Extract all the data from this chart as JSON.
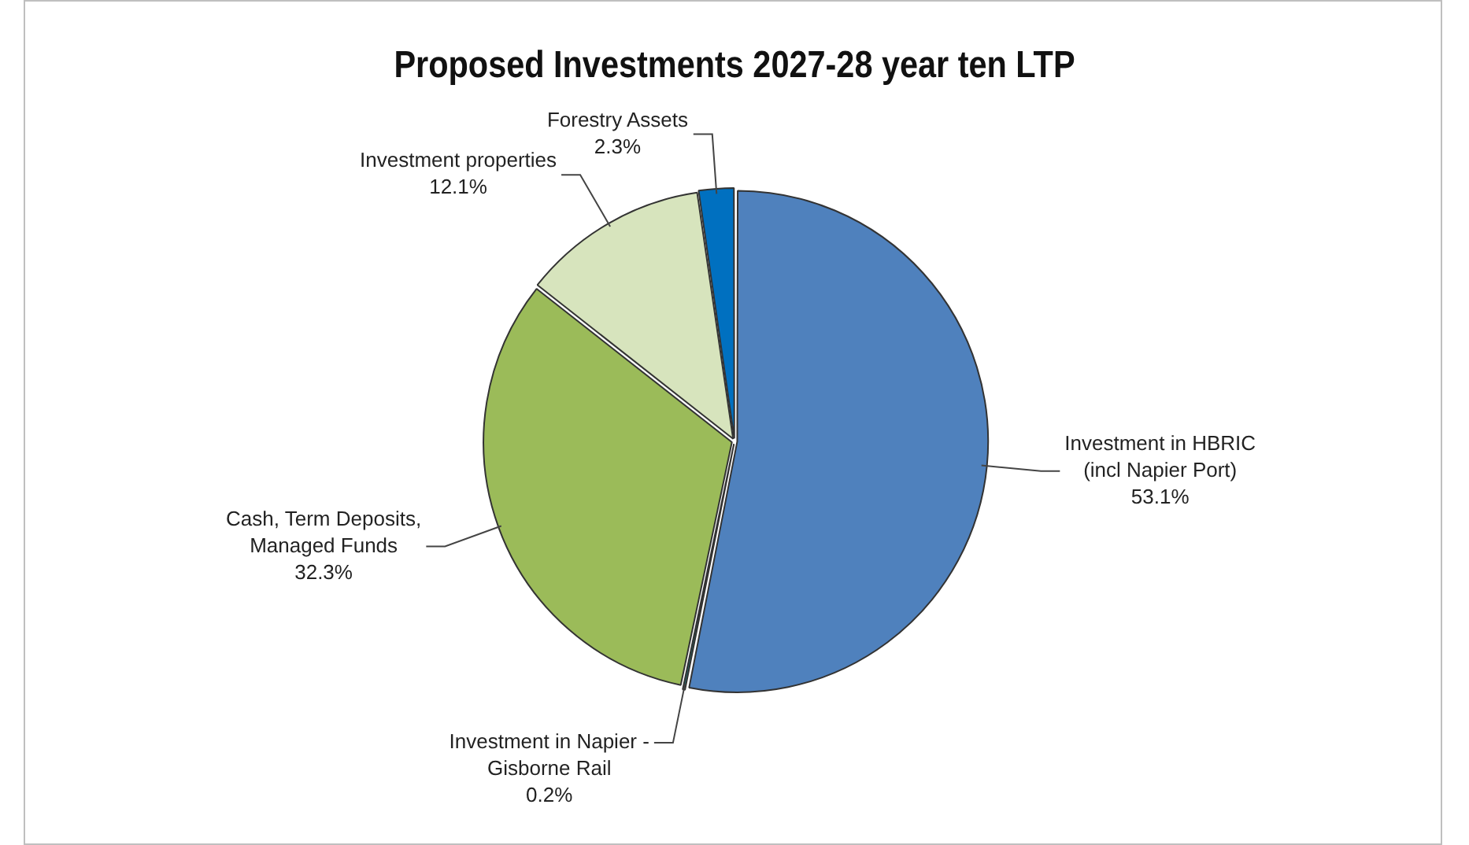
{
  "chart_data": {
    "type": "pie",
    "title": "Proposed Investments 2027-28 year ten LTP",
    "categories": [
      "Investment in HBRIC (incl Napier Port)",
      "Investment in Napier - Gisborne Rail",
      "Cash, Term Deposits, Managed Funds",
      "Investment properties",
      "Forestry Assets"
    ],
    "values": [
      53.1,
      0.2,
      32.3,
      12.1,
      2.3
    ],
    "colors": [
      "#4f81bd",
      "#1f6e6e",
      "#9bbb59",
      "#d7e4bd",
      "#0070c0"
    ],
    "value_labels": [
      "53.1%",
      "0.2%",
      "32.3%",
      "12.1%",
      "2.3%"
    ],
    "legend": false
  }
}
